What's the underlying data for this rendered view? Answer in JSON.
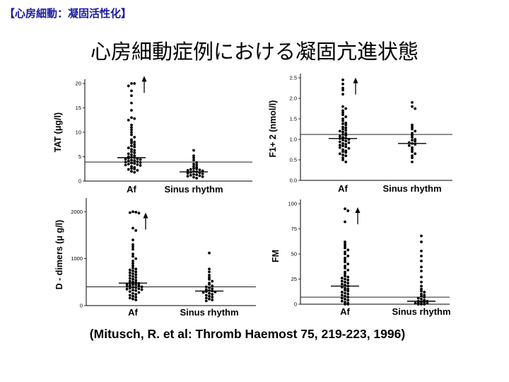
{
  "slide": {
    "tag": "【心房細動：凝固活性化】",
    "title": "心房細動症例における凝固亢進状態",
    "citation": "(Mitusch, R. et al: Thromb Haemost 75, 219-223, 1996)"
  },
  "chart_data": [
    {
      "type": "scatter",
      "ylabel": "TAT (μg/l)",
      "categories": [
        "Af",
        "Sinus rhythm"
      ],
      "yticks": [
        0,
        5,
        10,
        15,
        20
      ],
      "ylim": [
        0,
        20
      ],
      "reference_line": 3.9,
      "medians": [
        4.8,
        1.9
      ],
      "arrow": {
        "category": 0,
        "value": 19.8
      },
      "series": [
        {
          "category": "Af",
          "values": [
            21,
            20.5,
            19.5,
            18.5,
            17.5,
            16,
            14.5,
            13,
            12.8,
            12.5,
            11.5,
            11,
            10.5,
            10,
            9.5,
            9,
            8.5,
            8.2,
            8,
            7.8,
            7.5,
            7.2,
            7,
            6.8,
            6.5,
            6.3,
            6,
            5.8,
            5.6,
            5.4,
            5.2,
            5,
            4.9,
            4.8,
            4.7,
            4.6,
            4.5,
            4.4,
            4.3,
            4.2,
            4.1,
            4,
            3.9,
            3.8,
            3.7,
            3.6,
            3.5,
            3.4,
            3.3,
            3.2,
            3,
            2.8,
            2.6,
            2.5,
            2.4,
            2.2,
            2,
            1.8
          ]
        },
        {
          "category": "Sinus rhythm",
          "values": [
            6.3,
            5.2,
            4.8,
            4.3,
            3.8,
            3.5,
            3.3,
            3,
            2.8,
            2.6,
            2.5,
            2.4,
            2.3,
            2.2,
            2.1,
            2,
            1.9,
            1.8,
            1.7,
            1.6,
            1.5,
            1.4,
            1.3,
            1.2,
            1.1,
            1,
            0.9,
            0.8,
            0.6
          ]
        }
      ]
    },
    {
      "type": "scatter",
      "ylabel": "F1+ 2 (nmol/l)",
      "categories": [
        "Af",
        "Sinus rhythm"
      ],
      "yticks": [
        0.0,
        0.5,
        1.0,
        1.5,
        2.0,
        2.5
      ],
      "ylim": [
        0,
        2.5
      ],
      "reference_line": 1.12,
      "medians": [
        1.02,
        0.9
      ],
      "arrow": {
        "category": 0,
        "value": 2.3
      },
      "series": [
        {
          "category": "Af",
          "values": [
            2.45,
            2.35,
            2.25,
            2.2,
            2.1,
            1.8,
            1.75,
            1.7,
            1.65,
            1.6,
            1.55,
            1.5,
            1.45,
            1.4,
            1.38,
            1.35,
            1.3,
            1.28,
            1.25,
            1.22,
            1.2,
            1.18,
            1.15,
            1.12,
            1.1,
            1.08,
            1.05,
            1.03,
            1.02,
            1.0,
            0.98,
            0.96,
            0.94,
            0.92,
            0.9,
            0.88,
            0.86,
            0.84,
            0.82,
            0.8,
            0.78,
            0.75,
            0.72,
            0.7,
            0.68,
            0.65,
            0.62,
            0.6,
            0.55,
            0.5,
            0.45
          ]
        },
        {
          "category": "Sinus rhythm",
          "values": [
            1.9,
            1.8,
            1.75,
            1.35,
            1.3,
            1.25,
            1.2,
            1.15,
            1.1,
            1.05,
            1.0,
            0.98,
            0.95,
            0.92,
            0.9,
            0.88,
            0.85,
            0.8,
            0.75,
            0.7,
            0.65,
            0.6,
            0.55,
            0.45
          ]
        }
      ]
    },
    {
      "type": "scatter",
      "ylabel": "D - dimers (μ g/l)",
      "categories": [
        "Af",
        "Sinus rhythm"
      ],
      "yticks": [
        0,
        1000,
        2000
      ],
      "ylim": [
        0,
        2200
      ],
      "reference_line": 400,
      "medians": [
        480,
        310
      ],
      "arrow": {
        "category": 0,
        "value": 1800
      },
      "series": [
        {
          "category": "Af",
          "values": [
            2000,
            1990,
            1980,
            1970,
            1650,
            1600,
            1400,
            1300,
            1250,
            1200,
            1100,
            1050,
            1000,
            950,
            900,
            850,
            800,
            780,
            760,
            740,
            720,
            700,
            680,
            660,
            640,
            620,
            600,
            580,
            560,
            540,
            520,
            500,
            490,
            480,
            470,
            460,
            450,
            440,
            430,
            420,
            410,
            400,
            390,
            380,
            370,
            360,
            350,
            340,
            330,
            320,
            300,
            280,
            260,
            240,
            220,
            200,
            180,
            160,
            140,
            120
          ]
        },
        {
          "category": "Sinus rhythm",
          "values": [
            1120,
            780,
            720,
            650,
            600,
            560,
            520,
            480,
            450,
            420,
            400,
            380,
            360,
            340,
            320,
            310,
            300,
            290,
            280,
            260,
            240,
            220,
            200,
            180,
            160,
            140,
            120,
            100
          ]
        }
      ]
    },
    {
      "type": "scatter",
      "ylabel": "FM",
      "categories": [
        "Af",
        "Sinus rhythm"
      ],
      "yticks": [
        0,
        25,
        50,
        75,
        100
      ],
      "ylim": [
        0,
        100
      ],
      "reference_line": 7,
      "medians": [
        18,
        3
      ],
      "arrow": {
        "category": 0,
        "value": 88
      },
      "series": [
        {
          "category": "Af",
          "values": [
            95,
            93,
            82,
            62,
            60,
            58,
            56,
            54,
            52,
            50,
            48,
            46,
            44,
            42,
            40,
            38,
            36,
            34,
            32,
            30,
            28,
            27,
            26,
            25,
            24,
            23,
            22,
            21,
            20,
            19,
            18,
            17,
            16,
            15,
            14,
            13,
            12,
            11,
            10,
            9,
            8,
            7,
            6,
            5,
            4,
            3,
            2,
            1,
            0,
            0
          ]
        },
        {
          "category": "Sinus rhythm",
          "values": [
            68,
            62,
            53,
            48,
            43,
            37,
            33,
            27,
            22,
            18,
            15,
            13,
            12,
            10,
            9,
            8,
            7,
            6,
            5,
            4,
            3,
            3,
            2,
            2,
            1,
            1,
            1,
            0,
            0,
            0
          ]
        }
      ]
    }
  ]
}
